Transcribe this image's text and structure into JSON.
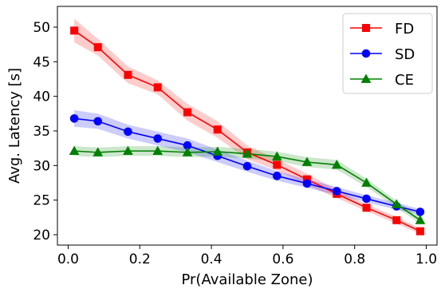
{
  "chart_data": {
    "type": "line",
    "title": "",
    "xlabel": "Pr(Available Zone)",
    "ylabel": "Avg. Latency [s]",
    "xlim": [
      -0.03,
      1.03
    ],
    "ylim": [
      18.5,
      53.0
    ],
    "xticks": [
      0.0,
      0.2,
      0.4,
      0.6,
      0.8,
      1.0
    ],
    "xtick_labels": [
      "0.0",
      "0.2",
      "0.4",
      "0.6",
      "0.8",
      "1.0"
    ],
    "yticks": [
      20,
      25,
      30,
      35,
      40,
      45,
      50
    ],
    "ytick_labels": [
      "20",
      "25",
      "30",
      "35",
      "40",
      "45",
      "50"
    ],
    "grid": false,
    "legend_position": "top-right",
    "x": [
      0.017,
      0.083,
      0.167,
      0.25,
      0.333,
      0.417,
      0.5,
      0.583,
      0.667,
      0.75,
      0.833,
      0.917,
      0.983
    ],
    "series": [
      {
        "name": "FD",
        "color": "#ff0000",
        "marker": "square",
        "values": [
          49.5,
          47.1,
          43.1,
          41.3,
          37.7,
          35.2,
          31.9,
          30.1,
          28.0,
          25.9,
          23.9,
          22.1,
          20.5
        ],
        "band": [
          1.7,
          1.2,
          1.2,
          1.0,
          1.2,
          1.2,
          1.0,
          0.8,
          0.8,
          0.6,
          0.5,
          0.5,
          0.4
        ]
      },
      {
        "name": "SD",
        "color": "#0000ff",
        "marker": "circle",
        "values": [
          36.8,
          36.4,
          34.9,
          33.9,
          32.9,
          31.4,
          29.9,
          28.5,
          27.4,
          26.3,
          25.2,
          24.1,
          23.3
        ],
        "band": [
          1.2,
          1.1,
          1.0,
          1.0,
          1.0,
          0.9,
          0.8,
          0.7,
          0.6,
          0.6,
          0.5,
          0.5,
          0.4
        ]
      },
      {
        "name": "CE",
        "color": "#008000",
        "marker": "triangle",
        "values": [
          32.1,
          31.9,
          32.1,
          32.1,
          31.9,
          32.0,
          31.7,
          31.3,
          30.5,
          30.1,
          27.5,
          24.4,
          22.1
        ],
        "band": [
          0.7,
          0.7,
          0.7,
          0.7,
          0.7,
          0.7,
          0.7,
          0.7,
          0.7,
          0.7,
          0.6,
          0.5,
          0.5
        ]
      }
    ]
  }
}
